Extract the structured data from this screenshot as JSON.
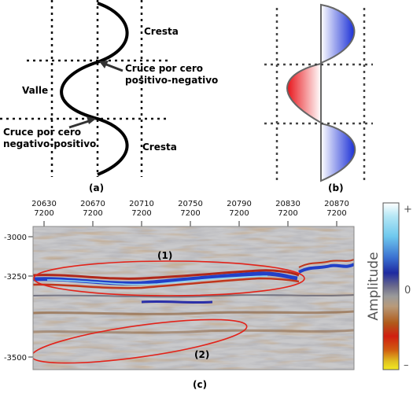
{
  "panel_a": {
    "caption": "(a)",
    "labels": {
      "crest_top": "Cresta",
      "zero_cross_pos_neg_line1": "Cruce por cero",
      "zero_cross_pos_neg_line2": "positivo-negativo",
      "trough": "Valle",
      "zero_cross_neg_pos_line1": "Cruce por cero",
      "zero_cross_neg_pos_line2": "negativo-positivo",
      "crest_bottom": "Cresta"
    }
  },
  "panel_b": {
    "caption": "(b)",
    "colors": {
      "positive": "#1a2fd6",
      "negative": "#e8141a"
    }
  },
  "panel_c": {
    "caption": "(c)",
    "x_ticks": [
      {
        "top": "20630",
        "bottom": "7200"
      },
      {
        "top": "20670",
        "bottom": "7200"
      },
      {
        "top": "20710",
        "bottom": "7200"
      },
      {
        "top": "20750",
        "bottom": "7200"
      },
      {
        "top": "20790",
        "bottom": "7200"
      },
      {
        "top": "20830",
        "bottom": "7200"
      },
      {
        "top": "20870",
        "bottom": "7200"
      }
    ],
    "y_ticks": [
      "-3000",
      "-3250",
      "-3500"
    ],
    "annotations": [
      "(1)",
      "(2)"
    ],
    "colorbar": {
      "label": "Amplitude",
      "top": "+",
      "mid": "0",
      "bottom": "–",
      "colors": [
        "#ffffff",
        "#b5e7f5",
        "#6fc9ee",
        "#3a6fd0",
        "#1e2aa0",
        "#6a6a8c",
        "#9a9a9a",
        "#b89a7a",
        "#b05a1a",
        "#d01e10",
        "#d05a10",
        "#e0c020",
        "#f2ea20"
      ]
    }
  }
}
